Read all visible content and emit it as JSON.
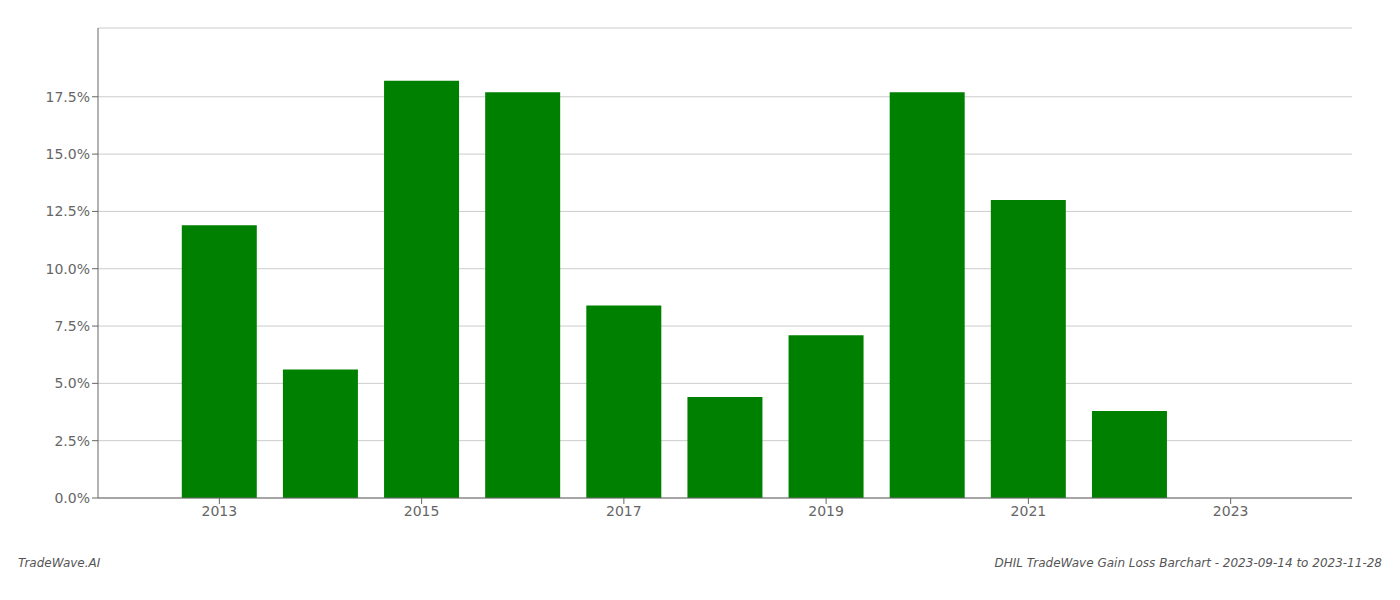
{
  "chart_data": {
    "type": "bar",
    "x": [
      2013,
      2014,
      2015,
      2016,
      2017,
      2018,
      2019,
      2020,
      2021,
      2022,
      2023
    ],
    "values": [
      0.119,
      0.056,
      0.182,
      0.177,
      0.084,
      0.044,
      0.071,
      0.177,
      0.13,
      0.038,
      0.0
    ],
    "color": "#008000",
    "xlim": [
      2011.8,
      2024.2
    ],
    "xticks": [
      2013,
      2015,
      2017,
      2019,
      2021,
      2023
    ],
    "ylim": [
      0,
      0.205
    ],
    "yticks": [
      {
        "value": 0.0,
        "label": "0.0%"
      },
      {
        "value": 0.025,
        "label": "2.5%"
      },
      {
        "value": 0.05,
        "label": "5.0%"
      },
      {
        "value": 0.075,
        "label": "7.5%"
      },
      {
        "value": 0.1,
        "label": "10.0%"
      },
      {
        "value": 0.125,
        "label": "12.5%"
      },
      {
        "value": 0.15,
        "label": "15.0%"
      },
      {
        "value": 0.175,
        "label": "17.5%"
      }
    ],
    "grid": true,
    "annotations": [
      "TradeWave.AI",
      "DHIL TradeWave Gain Loss Barchart - 2023-09-14 to 2023-11-28"
    ]
  }
}
